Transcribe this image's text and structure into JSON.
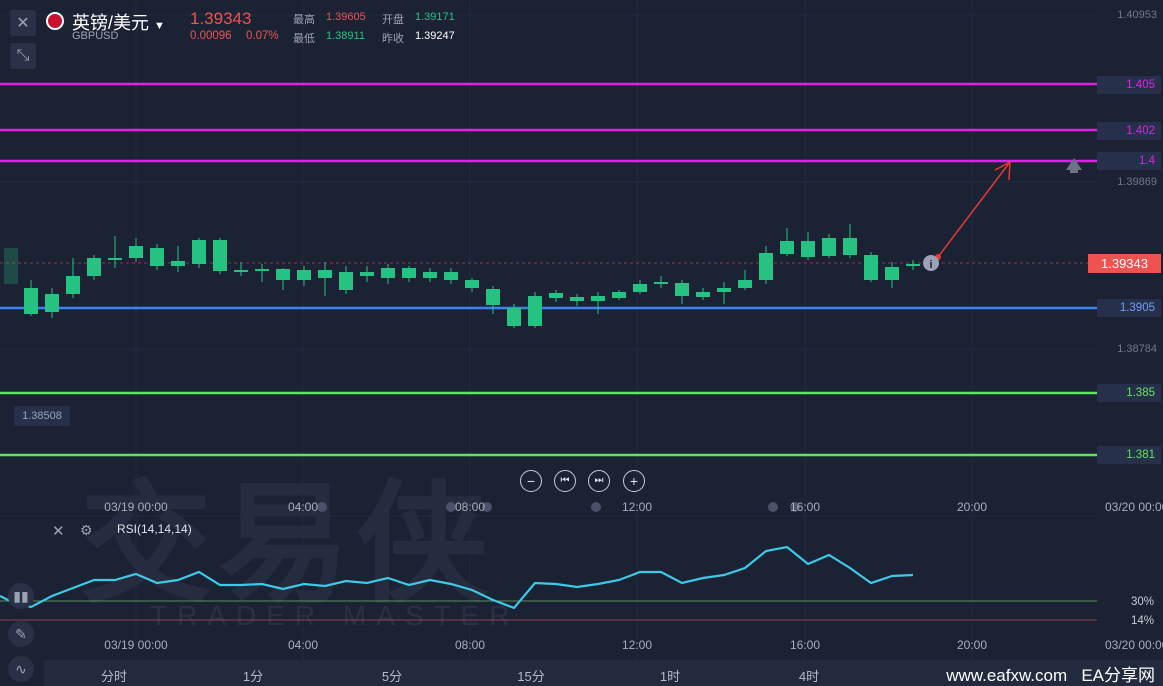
{
  "header": {
    "symbol_name": "英镑/美元",
    "symbol_code": "GBPUSD",
    "last_price": "1.39343",
    "change": "0.00096",
    "change_pct": "0.07%",
    "high_label": "最高",
    "high_value": "1.39605",
    "open_label": "开盘",
    "open_value": "1.39171",
    "low_label": "最低",
    "low_value": "1.38911",
    "prev_close_label": "昨收",
    "prev_close_value": "1.39247"
  },
  "price_axis": {
    "top": "1.40953",
    "mid1": "1.39869",
    "mid2": "1.38784",
    "left_marker": "1.38508",
    "current": "1.39343"
  },
  "hlines": [
    {
      "label": "1.405",
      "color": "#e020e8"
    },
    {
      "label": "1.402",
      "color": "#e020e8"
    },
    {
      "label": "1.4",
      "color": "#e020e8"
    },
    {
      "label": "1.3905",
      "color": "#3b82f6"
    },
    {
      "label": "1.385",
      "color": "#5ee65a"
    },
    {
      "label": "1.381",
      "color": "#5ee65a"
    }
  ],
  "time_axis": [
    "03/19 00:00",
    "04:00",
    "08:00",
    "12:00",
    "16:00",
    "20:00",
    "03/20 00:00"
  ],
  "rsi": {
    "label": "RSI(14,14,14)",
    "level_high": "30%",
    "level_low": "14%"
  },
  "timeframes": [
    "分时",
    "1分",
    "5分",
    "15分",
    "1时",
    "4时"
  ],
  "watermark": {
    "big": "交易侠",
    "small": "TRADER MASTER"
  },
  "footer": {
    "site": "www.eafxw.com",
    "brand": "EA分享网"
  },
  "colors": {
    "up": "#ef5350",
    "down": "#26c281",
    "background": "#1b2234"
  }
}
